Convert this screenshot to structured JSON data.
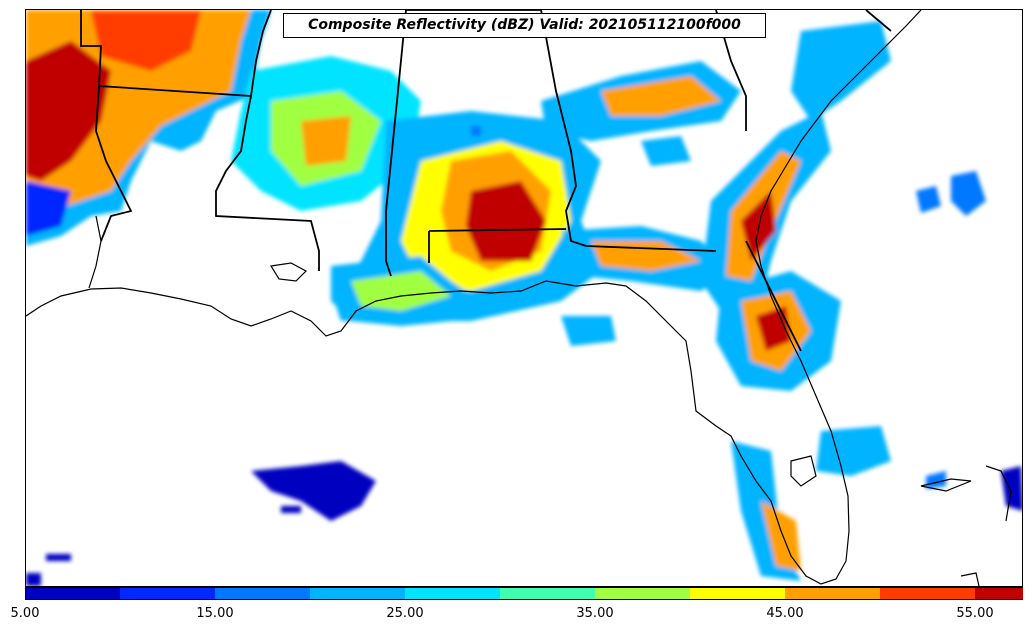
{
  "title": "Composite Reflectivity (dBZ) Valid: 202105112100f000",
  "colorbar": {
    "bins": [
      5,
      10,
      15,
      20,
      25,
      30,
      35,
      40,
      45,
      50,
      55
    ],
    "colors": [
      "#0000c0",
      "#0028ff",
      "#0078ff",
      "#00b4ff",
      "#00e4ff",
      "#40ffb0",
      "#a0ff40",
      "#ffff00",
      "#ffa000",
      "#ff3c00",
      "#c00000"
    ],
    "extend_color": "#8c0000",
    "tick_labels": [
      "5.00",
      "15.00",
      "25.00",
      "35.00",
      "45.00",
      "55.00"
    ],
    "tick_values": [
      5,
      15,
      25,
      35,
      45,
      55
    ],
    "max_extend": 60
  },
  "colors": {
    "coastline": "#000000",
    "state_border": "#000000"
  }
}
